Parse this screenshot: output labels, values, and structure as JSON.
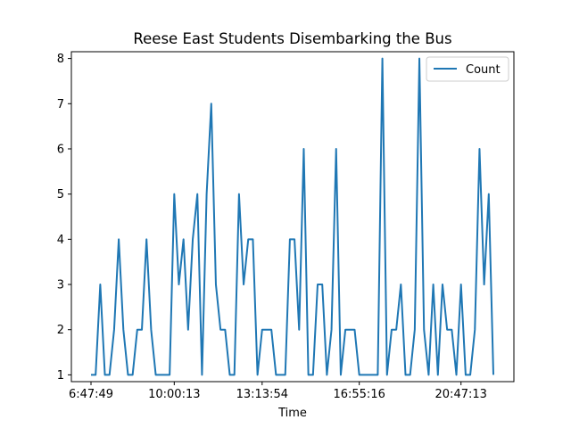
{
  "chart_data": {
    "type": "line",
    "title": "Reese East Students Disembarking the Bus",
    "xlabel": "Time",
    "ylabel": "",
    "xticks": [
      "6:47:49",
      "10:00:13",
      "13:13:54",
      "16:55:16",
      "20:47:13"
    ],
    "ylim": [
      0.85,
      8.15
    ],
    "yticks": [
      1,
      2,
      3,
      4,
      5,
      6,
      7,
      8
    ],
    "grid": false,
    "legend_position": "top-right",
    "series": [
      {
        "name": "Count",
        "color": "#1f77b4",
        "values": [
          1,
          1,
          3,
          1,
          1,
          2,
          4,
          2,
          1,
          1,
          2,
          2,
          4,
          2,
          1,
          1,
          1,
          1,
          5,
          3,
          4,
          2,
          4,
          5,
          1,
          5,
          7,
          3,
          2,
          2,
          1,
          1,
          5,
          3,
          4,
          4,
          1,
          2,
          2,
          2,
          1,
          1,
          1,
          4,
          4,
          2,
          6,
          1,
          1,
          3,
          3,
          1,
          2,
          6,
          1,
          2,
          2,
          2,
          1,
          1,
          1,
          1,
          1,
          8,
          1,
          2,
          2,
          3,
          1,
          1,
          2,
          8,
          2,
          1,
          3,
          1,
          3,
          2,
          2,
          1,
          3,
          1,
          1,
          2,
          6,
          3,
          5,
          1
        ]
      }
    ]
  }
}
